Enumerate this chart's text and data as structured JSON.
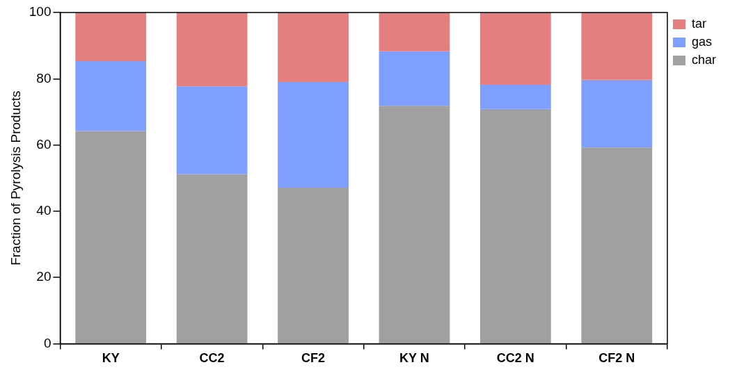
{
  "chart_data": {
    "type": "bar",
    "stacked": true,
    "ylabel": "Fraction of Pyrolysis Products",
    "categories": [
      "KY",
      "CC2",
      "CF2",
      "KY N",
      "CC2 N",
      "CF2 N"
    ],
    "series": [
      {
        "name": "char",
        "color": "#a0a0a0",
        "values": [
          64.2,
          51.2,
          47.3,
          71.8,
          70.9,
          59.2
        ]
      },
      {
        "name": "gas",
        "color": "#7f9fff",
        "values": [
          21.3,
          26.5,
          31.9,
          16.5,
          7.5,
          20.5
        ]
      },
      {
        "name": "tar",
        "color": "#e57f7f",
        "values": [
          14.5,
          22.3,
          20.8,
          11.7,
          21.6,
          20.3
        ]
      }
    ],
    "ylim": [
      0,
      100
    ],
    "yticks": [
      0,
      20,
      40,
      60,
      80,
      100
    ],
    "grid": false,
    "legend": "top right"
  }
}
